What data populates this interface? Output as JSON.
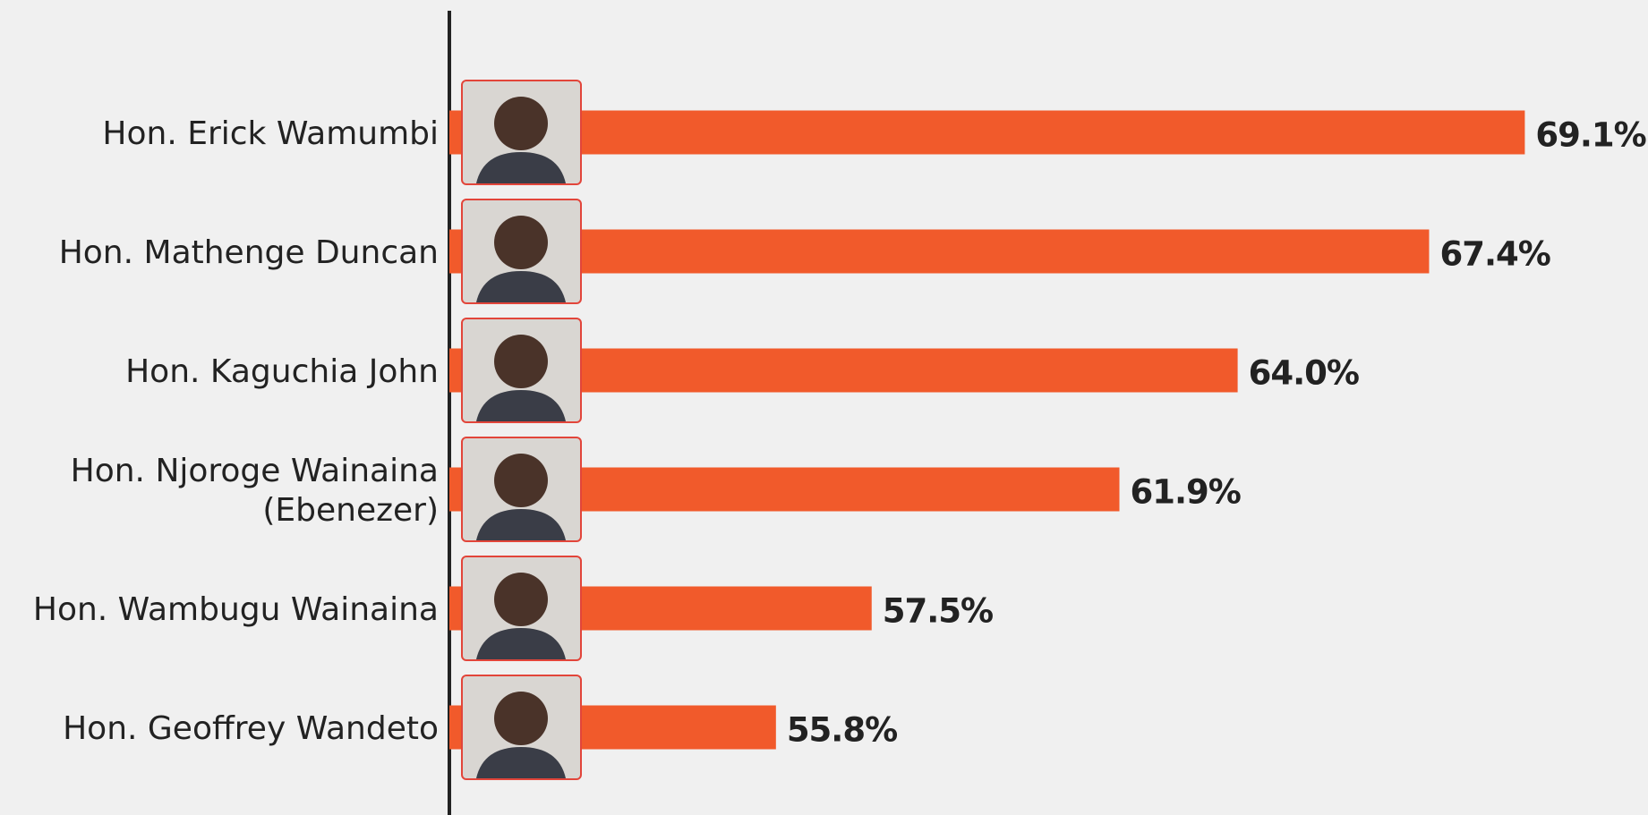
{
  "chart_data": {
    "type": "barh",
    "categories": [
      "Hon. Erick Wamumbi",
      "Hon. Mathenge Duncan",
      "Hon. Kaguchia John",
      "Hon. Njoroge Wainaina\n(Ebenezer)",
      "Hon. Wambugu Wainaina",
      "Hon. Geoffrey Wandeto"
    ],
    "values": [
      69.1,
      67.4,
      64.0,
      61.9,
      57.5,
      55.8
    ],
    "value_labels": [
      "69.1%",
      "67.4%",
      "64.0%",
      "61.9%",
      "57.5%",
      "55.8%"
    ],
    "color": "#f15a2b",
    "xlim": [
      50,
      70
    ]
  }
}
